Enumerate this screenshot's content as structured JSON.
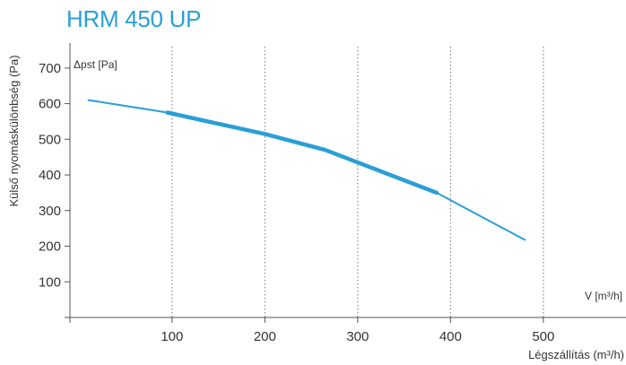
{
  "chart_data": {
    "type": "line",
    "title": "HRM 450 UP",
    "xlabel": "Légszállítás (m³/h)",
    "ylabel": "Külső nyomáskülönbség (Pa)",
    "x_inner_label": "V [m³/h]",
    "y_inner_label": "Δpst [Pa]",
    "xlim": [
      -10,
      590
    ],
    "ylim": [
      0,
      760
    ],
    "x_ticks": [
      100,
      200,
      300,
      400,
      500
    ],
    "y_ticks": [
      100,
      200,
      300,
      400,
      500,
      600,
      700
    ],
    "grid": "vertical dotted",
    "series": [
      {
        "color": "#2a9fd6",
        "x": [
          10,
          95,
          200,
          265,
          320,
          385,
          480
        ],
        "y": [
          610,
          575,
          515,
          470,
          415,
          350,
          218
        ]
      }
    ]
  }
}
